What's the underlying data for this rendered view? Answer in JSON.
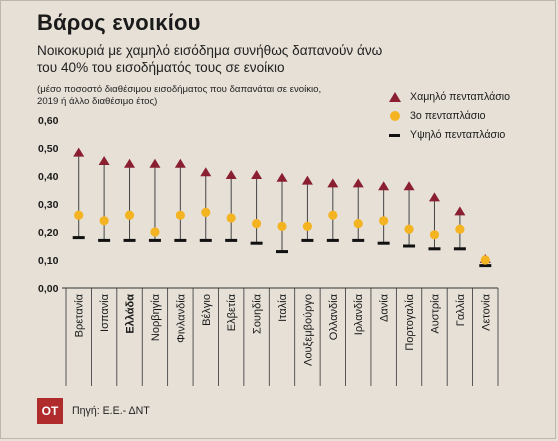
{
  "chart_data": {
    "type": "scatter",
    "title": "Βάρος ενοικίου",
    "subtitle": "Νοικοκυριά με χαμηλό εισόδημα συνήθως δαπανούν άνω του 40% του εισοδήματός τους σε ενοίκιο",
    "note": "(μέσο ποσοστό διαθέσιμου εισοδήματος που δαπανάται σε ενοίκιο, 2019 ή άλλο διαθέσιμο έτος)",
    "categories": [
      "Βρετανία",
      "Ισπανία",
      "Ελλάδα",
      "Νορβηγία",
      "Φινλανδία",
      "Βέλγιο",
      "Ελβετία",
      "Σουηδία",
      "Ιταλία",
      "Λουξεμβούργο",
      "Ολλανδία",
      "Ιρλανδία",
      "Δανία",
      "Πορτογαλία",
      "Αυστρία",
      "Γαλλία",
      "Λετονία"
    ],
    "highlight_category": "Ελλάδα",
    "series": [
      {
        "name": "Χαμηλό πενταπλάσιο",
        "marker": "triangle",
        "color": "#8a1f32",
        "values": [
          0.48,
          0.45,
          0.44,
          0.44,
          0.44,
          0.41,
          0.4,
          0.4,
          0.39,
          0.38,
          0.37,
          0.37,
          0.36,
          0.36,
          0.32,
          0.27,
          0.1
        ]
      },
      {
        "name": "3ο πενταπλάσιο",
        "marker": "circle",
        "color": "#f4b320",
        "values": [
          0.26,
          0.24,
          0.26,
          0.2,
          0.26,
          0.27,
          0.25,
          0.23,
          0.22,
          0.22,
          0.26,
          0.23,
          0.24,
          0.21,
          0.19,
          0.21,
          0.1
        ]
      },
      {
        "name": "Υψηλό πενταπλάσιο",
        "marker": "bar",
        "color": "#111111",
        "values": [
          0.18,
          0.17,
          0.17,
          0.17,
          0.17,
          0.17,
          0.17,
          0.16,
          0.13,
          0.17,
          0.17,
          0.17,
          0.16,
          0.15,
          0.14,
          0.14,
          0.08
        ]
      }
    ],
    "yticks": [
      "0,00",
      "0,10",
      "0,20",
      "0,30",
      "0,40",
      "0,50",
      "0,60"
    ],
    "ylim": [
      0,
      0.6
    ],
    "legend_position": "top-right",
    "grid": false
  },
  "colors": {
    "background": "#e6e0d7",
    "range_line": "#444444"
  },
  "footer": {
    "logo": "OT",
    "source": "Πηγή: Ε.Ε.- ΔΝΤ"
  }
}
